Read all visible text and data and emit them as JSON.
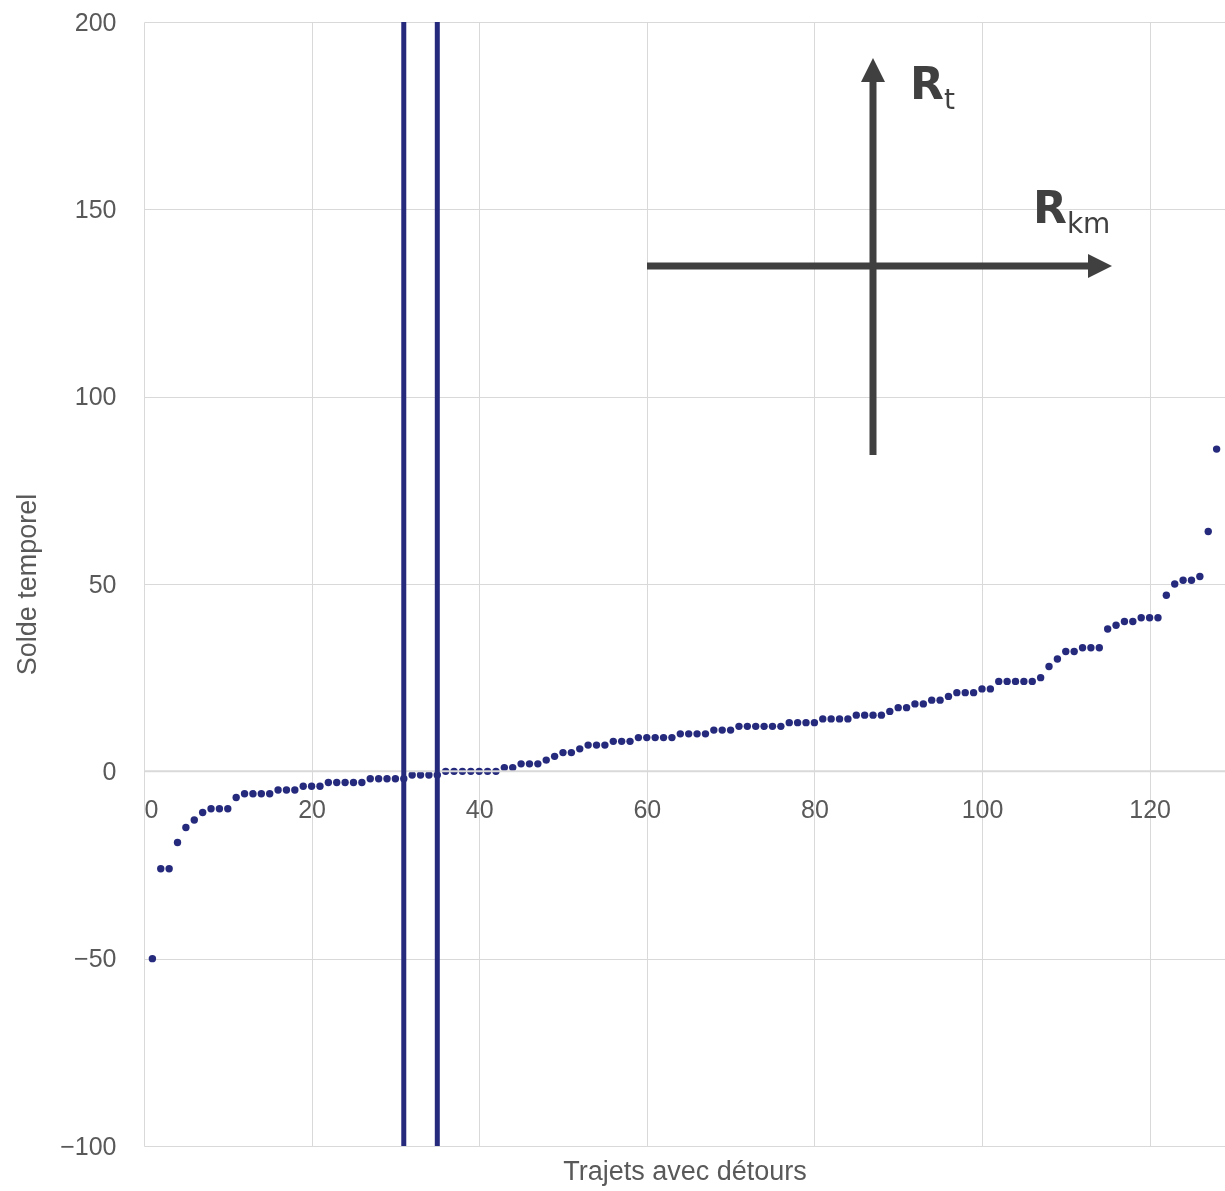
{
  "chart_data": {
    "type": "scatter",
    "xlabel": "Trajets avec détours",
    "ylabel": "Solde temporel",
    "x": [
      1,
      2,
      3,
      4,
      5,
      6,
      7,
      8,
      9,
      10,
      11,
      12,
      13,
      14,
      15,
      16,
      17,
      18,
      19,
      20,
      21,
      22,
      23,
      24,
      25,
      26,
      27,
      28,
      29,
      30,
      31,
      32,
      33,
      34,
      35,
      36,
      37,
      38,
      39,
      40,
      41,
      42,
      43,
      44,
      45,
      46,
      47,
      48,
      49,
      50,
      51,
      52,
      53,
      54,
      55,
      56,
      57,
      58,
      59,
      60,
      61,
      62,
      63,
      64,
      65,
      66,
      67,
      68,
      69,
      70,
      71,
      72,
      73,
      74,
      75,
      76,
      77,
      78,
      79,
      80,
      81,
      82,
      83,
      84,
      85,
      86,
      87,
      88,
      89,
      90,
      91,
      92,
      93,
      94,
      95,
      96,
      97,
      98,
      99,
      100,
      101,
      102,
      103,
      104,
      105,
      106,
      107,
      108,
      109,
      110,
      111,
      112,
      113,
      114,
      115,
      116,
      117,
      118,
      119,
      120,
      121,
      122,
      123,
      124,
      125,
      126,
      127,
      128
    ],
    "values": [
      -50,
      -26,
      -26,
      -19,
      -15,
      -13,
      -11,
      -10,
      -10,
      -10,
      -7,
      -6,
      -6,
      -6,
      -6,
      -5,
      -5,
      -5,
      -4,
      -4,
      -4,
      -3,
      -3,
      -3,
      -3,
      -3,
      -2,
      -2,
      -2,
      -2,
      -2,
      -1,
      -1,
      -1,
      -1,
      0,
      0,
      0,
      0,
      0,
      0,
      0,
      1,
      1,
      2,
      2,
      2,
      3,
      4,
      5,
      5,
      6,
      7,
      7,
      7,
      8,
      8,
      8,
      9,
      9,
      9,
      9,
      9,
      10,
      10,
      10,
      10,
      11,
      11,
      11,
      12,
      12,
      12,
      12,
      12,
      12,
      13,
      13,
      13,
      13,
      14,
      14,
      14,
      14,
      15,
      15,
      15,
      15,
      16,
      17,
      17,
      18,
      18,
      19,
      19,
      20,
      21,
      21,
      21,
      22,
      22,
      24,
      24,
      24,
      24,
      24,
      25,
      28,
      30,
      32,
      32,
      33,
      33,
      33,
      38,
      39,
      40,
      40,
      41,
      41,
      41,
      47,
      50,
      51,
      51,
      52,
      64,
      86
    ],
    "color": "#262a7d",
    "marker": "circle",
    "xlim": [
      0,
      129
    ],
    "xticks": [
      0,
      20,
      40,
      60,
      80,
      100,
      120
    ],
    "ylim": [
      -100,
      200
    ],
    "yticks": [
      -100,
      -50,
      0,
      50,
      100,
      150,
      200
    ],
    "grid": true,
    "ref_lines": [
      {
        "axis": "x",
        "value": 31,
        "color": "#262a7d"
      },
      {
        "axis": "x",
        "value": 35,
        "color": "#262a7d"
      }
    ],
    "annotations": [
      "R$_{t}$",
      "R$_{km}$"
    ]
  }
}
